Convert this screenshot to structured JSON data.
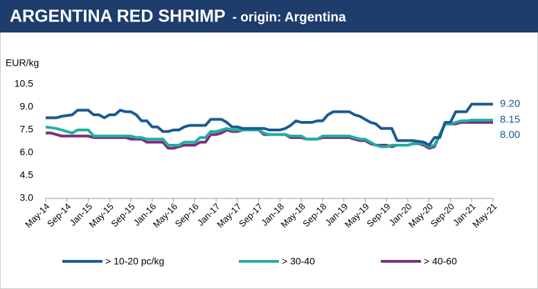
{
  "chart_data": {
    "type": "line",
    "title": "ARGENTINA RED SHRIMP",
    "subtitle": "- origin: Argentina",
    "y_label": "EUR/kg",
    "categories": [
      "May-14",
      null,
      null,
      null,
      "Sep-14",
      null,
      null,
      null,
      "Jan-15",
      null,
      null,
      null,
      "May-15",
      null,
      null,
      null,
      "Sep-15",
      null,
      null,
      null,
      "Jan-16",
      null,
      null,
      null,
      "May-16",
      null,
      null,
      null,
      "Sep-16",
      null,
      null,
      null,
      "Jan-17",
      null,
      null,
      null,
      "May-17",
      null,
      null,
      null,
      "Sep-17",
      null,
      null,
      null,
      "Jan-18",
      null,
      null,
      null,
      "May-18",
      null,
      null,
      null,
      "Sep-18",
      null,
      null,
      null,
      "Jan-19",
      null,
      null,
      null,
      "May-19",
      null,
      null,
      null,
      "Sep-19",
      null,
      null,
      null,
      "Jan-20",
      null,
      null,
      null,
      "May-20",
      null,
      null,
      null,
      "Sep-20",
      null,
      null,
      null,
      "Jan-21",
      null,
      null,
      null,
      "May-21"
    ],
    "series": [
      {
        "name": "> 10-20 pc/kg",
        "color": "#1b5a93",
        "values": [
          8.3,
          8.3,
          8.3,
          8.4,
          8.45,
          8.5,
          8.8,
          8.8,
          8.8,
          8.5,
          8.5,
          8.3,
          8.5,
          8.5,
          8.8,
          8.7,
          8.7,
          8.5,
          8.1,
          8.1,
          7.7,
          7.7,
          7.4,
          7.4,
          7.5,
          7.5,
          7.7,
          7.8,
          7.8,
          7.8,
          7.8,
          8.2,
          8.2,
          8.2,
          8.0,
          7.7,
          7.7,
          7.6,
          7.6,
          7.6,
          7.6,
          7.6,
          7.5,
          7.5,
          7.5,
          7.6,
          7.8,
          8.1,
          8.0,
          8.0,
          8.0,
          8.1,
          8.1,
          8.5,
          8.7,
          8.7,
          8.7,
          8.7,
          8.5,
          8.4,
          8.2,
          8.0,
          7.9,
          7.6,
          7.6,
          7.6,
          6.8,
          6.8,
          6.8,
          6.8,
          6.75,
          6.7,
          6.5,
          7.0,
          7.0,
          8.0,
          8.0,
          8.7,
          8.7,
          8.7,
          9.2,
          9.2,
          9.2,
          9.2,
          9.2
        ],
        "value_labels": [
          null,
          null,
          null,
          null,
          null,
          null,
          null,
          null,
          null,
          null,
          null,
          null,
          null,
          null,
          null,
          null,
          null,
          null,
          null,
          null,
          null,
          null,
          null,
          null,
          null,
          null,
          null,
          null,
          null,
          null,
          null,
          null,
          null,
          null,
          null,
          null,
          null,
          null,
          null,
          null,
          null,
          null,
          null,
          null,
          null,
          null,
          null,
          null,
          null,
          null,
          null,
          null,
          null,
          null,
          null,
          null,
          null,
          null,
          null,
          null,
          null,
          null,
          null,
          null,
          null,
          null,
          null,
          null,
          null,
          null,
          null,
          null,
          null,
          null,
          null,
          null,
          null,
          null,
          null,
          null,
          null,
          null,
          null,
          null,
          "9.20"
        ]
      },
      {
        "name": "> 30-40",
        "color": "#1fb0a0",
        "values": [
          7.7,
          7.65,
          7.6,
          7.5,
          7.4,
          7.3,
          7.5,
          7.5,
          7.5,
          7.1,
          7.1,
          7.1,
          7.1,
          7.1,
          7.1,
          7.1,
          7.1,
          7.0,
          7.0,
          6.9,
          6.9,
          6.9,
          6.9,
          6.5,
          6.5,
          6.5,
          6.7,
          6.7,
          6.7,
          7.0,
          7.0,
          7.4,
          7.4,
          7.5,
          7.6,
          7.5,
          7.5,
          7.5,
          7.5,
          7.5,
          7.5,
          7.3,
          7.2,
          7.2,
          7.2,
          7.2,
          7.1,
          7.1,
          7.1,
          6.9,
          6.9,
          6.9,
          7.1,
          7.1,
          7.1,
          7.1,
          7.1,
          7.1,
          7.0,
          6.9,
          6.9,
          6.7,
          6.5,
          6.4,
          6.4,
          6.5,
          6.5,
          6.5,
          6.5,
          6.6,
          6.6,
          6.6,
          6.4,
          6.5,
          7.2,
          7.9,
          7.9,
          8.0,
          8.1,
          8.1,
          8.15,
          8.15,
          8.15,
          8.15,
          8.15
        ],
        "value_labels": [
          null,
          null,
          null,
          null,
          null,
          null,
          null,
          null,
          null,
          null,
          null,
          null,
          null,
          null,
          null,
          null,
          null,
          null,
          null,
          null,
          null,
          null,
          null,
          null,
          null,
          null,
          null,
          null,
          null,
          null,
          null,
          null,
          null,
          null,
          null,
          null,
          null,
          null,
          null,
          null,
          null,
          null,
          null,
          null,
          null,
          null,
          null,
          null,
          null,
          null,
          null,
          null,
          null,
          null,
          null,
          null,
          null,
          null,
          null,
          null,
          null,
          null,
          null,
          null,
          null,
          null,
          null,
          null,
          null,
          null,
          null,
          null,
          null,
          null,
          null,
          null,
          null,
          null,
          null,
          null,
          null,
          null,
          null,
          null,
          "8.15"
        ]
      },
      {
        "name": "> 40-60",
        "color": "#7d2f7d",
        "values": [
          7.3,
          7.3,
          7.2,
          7.1,
          7.1,
          7.1,
          7.1,
          7.1,
          7.1,
          7.0,
          7.0,
          7.0,
          7.0,
          7.0,
          7.0,
          7.0,
          6.9,
          6.9,
          6.9,
          6.7,
          6.7,
          6.7,
          6.7,
          6.3,
          6.3,
          6.4,
          6.5,
          6.5,
          6.5,
          6.7,
          6.7,
          7.2,
          7.2,
          7.3,
          7.5,
          7.4,
          7.4,
          7.5,
          7.5,
          7.5,
          7.5,
          7.2,
          7.2,
          7.2,
          7.2,
          7.2,
          7.0,
          7.0,
          7.0,
          6.9,
          6.9,
          6.9,
          7.0,
          7.0,
          7.0,
          7.0,
          7.0,
          7.0,
          6.9,
          6.8,
          6.8,
          6.6,
          6.5,
          6.5,
          6.5,
          6.4,
          6.5,
          6.5,
          6.5,
          6.6,
          6.6,
          6.5,
          6.3,
          6.4,
          7.2,
          7.9,
          7.9,
          7.9,
          8.0,
          8.0,
          8.0,
          8.0,
          8.0,
          8.0,
          8.0
        ],
        "value_labels": [
          null,
          null,
          null,
          null,
          null,
          null,
          null,
          null,
          null,
          null,
          null,
          null,
          null,
          null,
          null,
          null,
          null,
          null,
          null,
          null,
          null,
          null,
          null,
          null,
          null,
          null,
          null,
          null,
          null,
          null,
          null,
          null,
          null,
          null,
          null,
          null,
          null,
          null,
          null,
          null,
          null,
          null,
          null,
          null,
          null,
          null,
          null,
          null,
          null,
          null,
          null,
          null,
          null,
          null,
          null,
          null,
          null,
          null,
          null,
          null,
          null,
          null,
          null,
          null,
          null,
          null,
          null,
          null,
          null,
          null,
          null,
          null,
          null,
          null,
          null,
          null,
          null,
          null,
          null,
          null,
          null,
          null,
          null,
          null,
          "8.00"
        ]
      }
    ],
    "ylim": [
      3,
      10.5
    ],
    "yticks": [
      {
        "value": 3,
        "label": "3.0"
      },
      4.5,
      {
        "value": 6,
        "label": "6.0"
      },
      7.5,
      {
        "value": 9,
        "label": "9.0"
      },
      10.5
    ],
    "grid": false,
    "legend": "bottom"
  }
}
